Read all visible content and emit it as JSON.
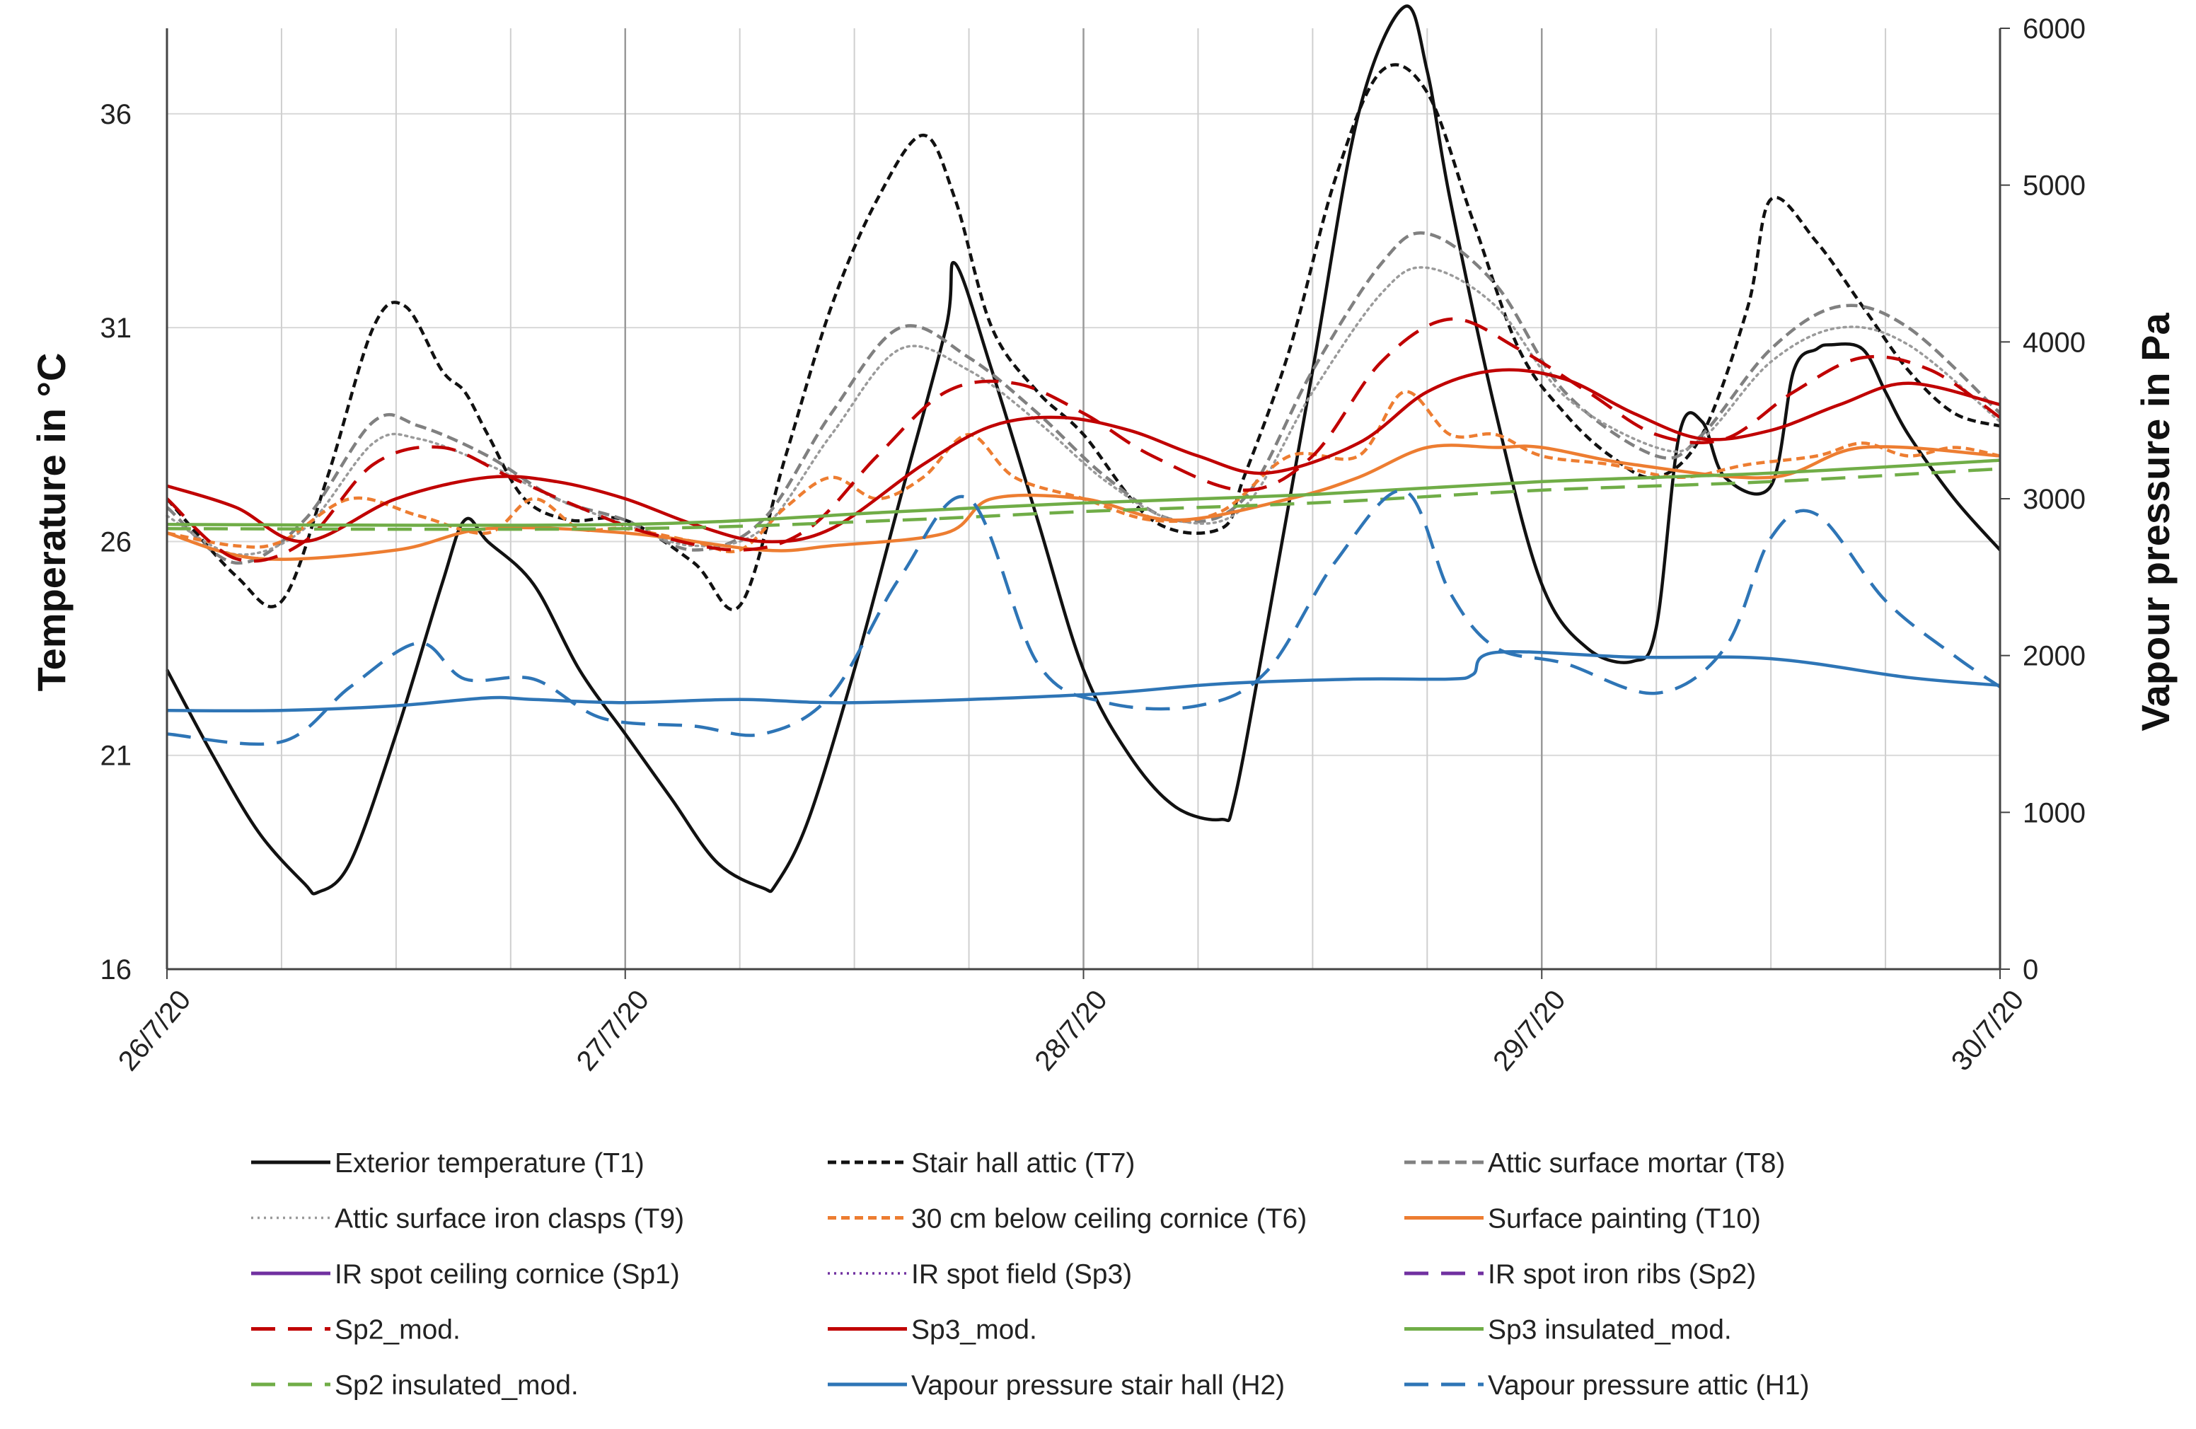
{
  "chart_data": {
    "type": "line",
    "title": "",
    "xlabel": "",
    "ylabel_left": "Temperature in °C",
    "ylabel_right": "Vapour pressure in Pa",
    "x_range": [
      0,
      4
    ],
    "x_tick_labels": [
      "26/7/20",
      "27/7/20",
      "28/7/20",
      "29/7/20",
      "30/7/20"
    ],
    "ylim_left": [
      16,
      38
    ],
    "ylim_right": [
      0,
      6000
    ],
    "left_ticks": [
      "16",
      "21",
      "26",
      "31",
      "36"
    ],
    "right_ticks": [
      "0",
      "1000",
      "2000",
      "3000",
      "4000",
      "5000",
      "6000"
    ],
    "grid": true,
    "legend_position": "bottom",
    "series": [
      {
        "name": "Exterior temperature (T1)",
        "color": "#111111",
        "dash": "solid",
        "axis": "left",
        "x": [
          0,
          0.1,
          0.2,
          0.3,
          0.33,
          0.4,
          0.5,
          0.6,
          0.65,
          0.7,
          0.8,
          0.9,
          1.0,
          1.1,
          1.2,
          1.3,
          1.33,
          1.4,
          1.5,
          1.6,
          1.7,
          1.72,
          1.8,
          1.9,
          2.0,
          2.1,
          2.2,
          2.3,
          2.33,
          2.4,
          2.5,
          2.6,
          2.7,
          2.75,
          2.8,
          2.9,
          3.0,
          3.1,
          3.2,
          3.25,
          3.3,
          3.35,
          3.4,
          3.5,
          3.55,
          3.6,
          3.63,
          3.7,
          3.75,
          3.8,
          3.9,
          4.0
        ],
        "y": [
          23.0,
          21.0,
          19.2,
          18.0,
          17.8,
          18.5,
          21.5,
          25.0,
          26.5,
          26.0,
          25.0,
          23.0,
          21.5,
          20.0,
          18.5,
          17.9,
          18.0,
          19.5,
          23.0,
          27.0,
          31.0,
          32.5,
          30.0,
          26.5,
          23.0,
          21.0,
          19.8,
          19.5,
          20.0,
          24.0,
          30.0,
          36.0,
          38.5,
          37.0,
          34.0,
          29.0,
          25.0,
          23.5,
          23.2,
          24.0,
          28.5,
          28.8,
          27.5,
          27.3,
          30.0,
          30.5,
          30.6,
          30.5,
          29.5,
          28.5,
          27.0,
          25.8
        ]
      },
      {
        "name": "Stair hall attic (T7)",
        "color": "#111111",
        "dash": "short-dash",
        "axis": "left",
        "x": [
          0,
          0.15,
          0.25,
          0.35,
          0.45,
          0.52,
          0.6,
          0.65,
          0.7,
          0.78,
          0.88,
          1.0,
          1.15,
          1.25,
          1.35,
          1.45,
          1.55,
          1.65,
          1.72,
          1.8,
          1.9,
          2.0,
          2.15,
          2.3,
          2.35,
          2.45,
          2.55,
          2.65,
          2.75,
          2.85,
          2.95,
          3.05,
          3.15,
          3.25,
          3.35,
          3.45,
          3.5,
          3.6,
          3.7,
          3.8,
          3.9,
          4.0
        ],
        "y": [
          27.0,
          25.2,
          24.6,
          27.5,
          31.0,
          31.5,
          30.0,
          29.5,
          28.5,
          27.0,
          26.5,
          26.5,
          25.5,
          24.5,
          28.0,
          31.5,
          34.0,
          35.5,
          34.0,
          31.0,
          29.5,
          28.5,
          26.5,
          26.3,
          27.5,
          30.5,
          34.5,
          37.0,
          36.5,
          33.5,
          30.5,
          29.0,
          28.0,
          27.5,
          28.5,
          31.5,
          34.0,
          33.0,
          31.5,
          30.0,
          29.0,
          28.7
        ]
      },
      {
        "name": "Attic surface mortar (T8)",
        "color": "#808080",
        "dash": "dash",
        "axis": "left",
        "x": [
          0,
          0.15,
          0.3,
          0.45,
          0.55,
          0.7,
          0.85,
          1.0,
          1.15,
          1.3,
          1.45,
          1.6,
          1.75,
          1.9,
          2.05,
          2.2,
          2.35,
          2.5,
          2.65,
          2.75,
          2.9,
          3.05,
          3.25,
          3.35,
          3.5,
          3.65,
          3.8,
          4.0
        ],
        "y": [
          26.8,
          25.5,
          26.5,
          28.8,
          28.7,
          28.0,
          27.0,
          26.5,
          25.8,
          26.5,
          29.0,
          31.0,
          30.3,
          29.0,
          27.5,
          26.5,
          27.0,
          30.0,
          32.5,
          33.2,
          32.0,
          29.5,
          28.0,
          28.5,
          30.5,
          31.5,
          31.0,
          29.0
        ]
      },
      {
        "name": "Attic surface iron clasps (T9)",
        "color": "#9a9a9a",
        "dash": "dot",
        "axis": "left",
        "x": [
          0,
          0.15,
          0.3,
          0.45,
          0.55,
          0.7,
          0.85,
          1.0,
          1.15,
          1.3,
          1.45,
          1.6,
          1.75,
          1.9,
          2.05,
          2.2,
          2.35,
          2.5,
          2.65,
          2.75,
          2.9,
          3.05,
          3.25,
          3.35,
          3.5,
          3.65,
          3.8,
          4.0
        ],
        "y": [
          26.6,
          25.7,
          26.3,
          28.3,
          28.4,
          27.8,
          27.0,
          26.4,
          25.9,
          26.3,
          28.5,
          30.5,
          30.0,
          28.8,
          27.4,
          26.5,
          26.8,
          29.5,
          31.8,
          32.4,
          31.5,
          29.4,
          28.2,
          28.4,
          30.2,
          31.0,
          30.6,
          28.8
        ]
      },
      {
        "name": "30 cm below ceiling cornice (T6)",
        "color": "#ed7d31",
        "dash": "short-dash",
        "axis": "left",
        "x": [
          0,
          0.15,
          0.25,
          0.4,
          0.55,
          0.7,
          0.8,
          0.9,
          1.0,
          1.15,
          1.25,
          1.35,
          1.45,
          1.55,
          1.65,
          1.75,
          1.85,
          2.0,
          2.15,
          2.3,
          2.45,
          2.6,
          2.7,
          2.8,
          2.9,
          3.0,
          3.15,
          3.3,
          3.45,
          3.6,
          3.7,
          3.8,
          3.9,
          4.0
        ],
        "y": [
          26.2,
          25.9,
          26.0,
          27.0,
          26.6,
          26.2,
          27.0,
          26.3,
          26.3,
          26.0,
          25.8,
          26.8,
          27.5,
          27.0,
          27.5,
          28.5,
          27.5,
          27.0,
          26.5,
          26.7,
          28.0,
          28.0,
          29.5,
          28.5,
          28.5,
          28.0,
          27.8,
          27.5,
          27.8,
          28.0,
          28.3,
          28.0,
          28.2,
          28.0
        ]
      },
      {
        "name": "Surface painting (T10)",
        "color": "#ed7d31",
        "dash": "solid",
        "axis": "left",
        "x": [
          0,
          0.2,
          0.5,
          0.7,
          1.0,
          1.3,
          1.45,
          1.7,
          1.8,
          2.0,
          2.2,
          2.45,
          2.6,
          2.75,
          2.9,
          3.0,
          3.2,
          3.5,
          3.7,
          4.0
        ],
        "y": [
          26.2,
          25.6,
          25.8,
          26.3,
          26.2,
          25.8,
          25.9,
          26.2,
          27.0,
          27.0,
          26.5,
          27.0,
          27.5,
          28.2,
          28.2,
          28.2,
          27.8,
          27.5,
          28.2,
          28.0
        ]
      },
      {
        "name": "IR spot ceiling cornice (Sp1)",
        "color": "#7030a0",
        "dash": "solid",
        "axis": "left",
        "x": [],
        "y": []
      },
      {
        "name": "IR spot field (Sp3)",
        "color": "#7030a0",
        "dash": "dot",
        "axis": "left",
        "x": [],
        "y": []
      },
      {
        "name": "IR spot iron ribs (Sp2)",
        "color": "#7030a0",
        "dash": "long-dash",
        "axis": "left",
        "x": [],
        "y": []
      },
      {
        "name": "Sp2_mod.",
        "color": "#c00000",
        "dash": "long-dash",
        "axis": "left",
        "x": [
          0,
          0.15,
          0.3,
          0.45,
          0.6,
          0.75,
          0.9,
          1.05,
          1.25,
          1.4,
          1.55,
          1.7,
          1.85,
          2.0,
          2.15,
          2.35,
          2.5,
          2.65,
          2.8,
          2.95,
          3.1,
          3.25,
          3.4,
          3.55,
          3.7,
          3.85,
          4.0
        ],
        "y": [
          27.0,
          25.6,
          26.0,
          27.8,
          28.2,
          27.5,
          26.8,
          26.2,
          25.8,
          26.3,
          28.0,
          29.5,
          29.7,
          29.0,
          28.0,
          27.2,
          28.0,
          30.2,
          31.2,
          30.5,
          29.5,
          28.5,
          28.4,
          29.5,
          30.3,
          30.0,
          28.9
        ]
      },
      {
        "name": "Sp3_mod.",
        "color": "#c00000",
        "dash": "solid",
        "axis": "left",
        "x": [
          0,
          0.15,
          0.3,
          0.5,
          0.7,
          0.85,
          1.0,
          1.15,
          1.3,
          1.45,
          1.65,
          1.8,
          1.95,
          2.1,
          2.25,
          2.4,
          2.6,
          2.75,
          2.9,
          3.05,
          3.2,
          3.35,
          3.5,
          3.65,
          3.8,
          4.0
        ],
        "y": [
          27.3,
          26.8,
          26.0,
          27.0,
          27.5,
          27.4,
          27.0,
          26.4,
          26.0,
          26.3,
          27.8,
          28.7,
          28.9,
          28.6,
          28.0,
          27.6,
          28.3,
          29.5,
          30.0,
          29.8,
          29.0,
          28.4,
          28.6,
          29.2,
          29.7,
          29.2
        ]
      },
      {
        "name": "Sp3 insulated_mod.",
        "color": "#70ad47",
        "dash": "solid",
        "axis": "left",
        "x": [
          0,
          1.0,
          1.6,
          2.0,
          2.5,
          3.0,
          3.5,
          4.0
        ],
        "y": [
          26.4,
          26.4,
          26.7,
          26.9,
          27.1,
          27.4,
          27.6,
          27.9
        ]
      },
      {
        "name": "Sp2 insulated_mod.",
        "color": "#70ad47",
        "dash": "long-dash",
        "axis": "left",
        "x": [
          0,
          1.0,
          1.6,
          2.0,
          2.5,
          3.0,
          3.5,
          4.0
        ],
        "y": [
          26.3,
          26.3,
          26.5,
          26.7,
          26.9,
          27.2,
          27.4,
          27.7
        ]
      },
      {
        "name": "Vapour pressure stair hall (H2)",
        "color": "#2e75b6",
        "dash": "solid",
        "axis": "right",
        "x": [
          0,
          0.25,
          0.5,
          0.7,
          0.8,
          1.0,
          1.25,
          1.5,
          2.0,
          2.3,
          2.6,
          2.8,
          2.85,
          2.9,
          3.2,
          3.5,
          3.8,
          4.0
        ],
        "y": [
          1650,
          1650,
          1680,
          1730,
          1720,
          1700,
          1720,
          1700,
          1750,
          1820,
          1850,
          1850,
          1880,
          2020,
          1990,
          1980,
          1860,
          1810
        ]
      },
      {
        "name": "Vapour pressure attic (H1)",
        "color": "#2e75b6",
        "dash": "long-dash",
        "axis": "right",
        "x": [
          0,
          0.25,
          0.4,
          0.55,
          0.65,
          0.8,
          0.95,
          1.15,
          1.3,
          1.45,
          1.6,
          1.75,
          1.9,
          2.05,
          2.25,
          2.4,
          2.55,
          2.7,
          2.8,
          2.9,
          3.05,
          3.25,
          3.4,
          3.5,
          3.6,
          3.75,
          3.9,
          4.0
        ],
        "y": [
          1500,
          1450,
          1800,
          2080,
          1850,
          1850,
          1600,
          1550,
          1500,
          1750,
          2500,
          3000,
          1950,
          1700,
          1680,
          1900,
          2600,
          3050,
          2400,
          2050,
          1950,
          1760,
          2050,
          2750,
          2900,
          2350,
          2000,
          1800
        ]
      }
    ]
  }
}
